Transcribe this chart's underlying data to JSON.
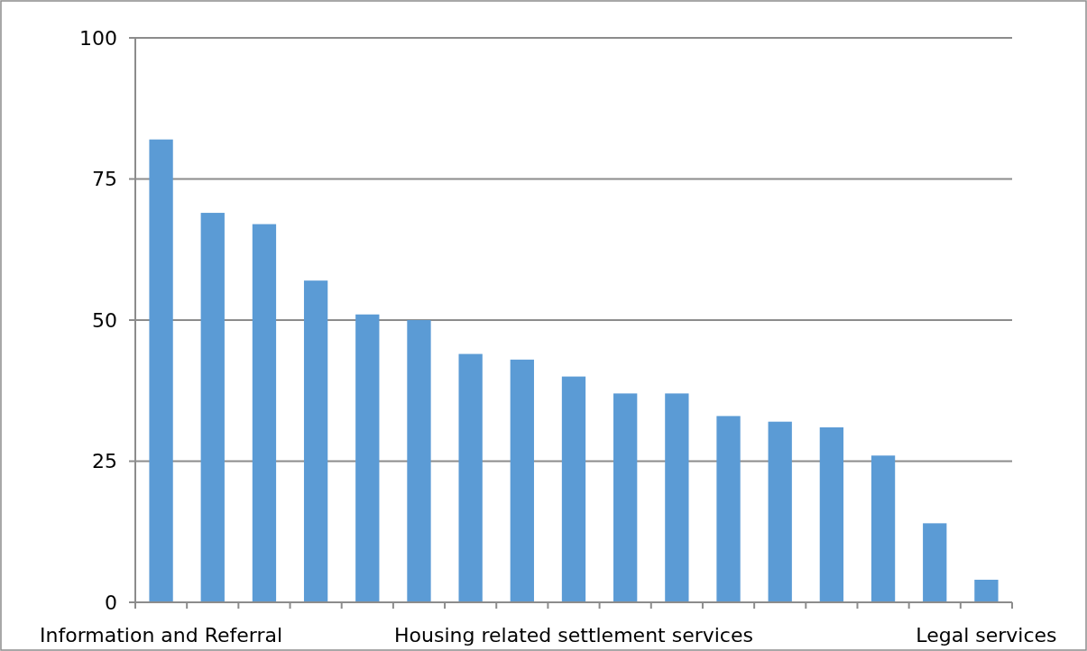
{
  "chart_data": {
    "type": "bar",
    "categories": [
      "Information and Referral",
      null,
      null,
      null,
      null,
      null,
      null,
      null,
      "Housing related settlement services",
      null,
      null,
      null,
      null,
      null,
      null,
      null,
      "Legal services"
    ],
    "values": [
      82,
      69,
      67,
      57,
      51,
      50,
      44,
      43,
      40,
      37,
      37,
      33,
      32,
      31,
      26,
      14,
      4
    ],
    "color": "#5b9bd5",
    "ylim": [
      0,
      100
    ],
    "yticks": [
      0,
      25,
      50,
      75,
      100
    ],
    "grid": "y"
  }
}
